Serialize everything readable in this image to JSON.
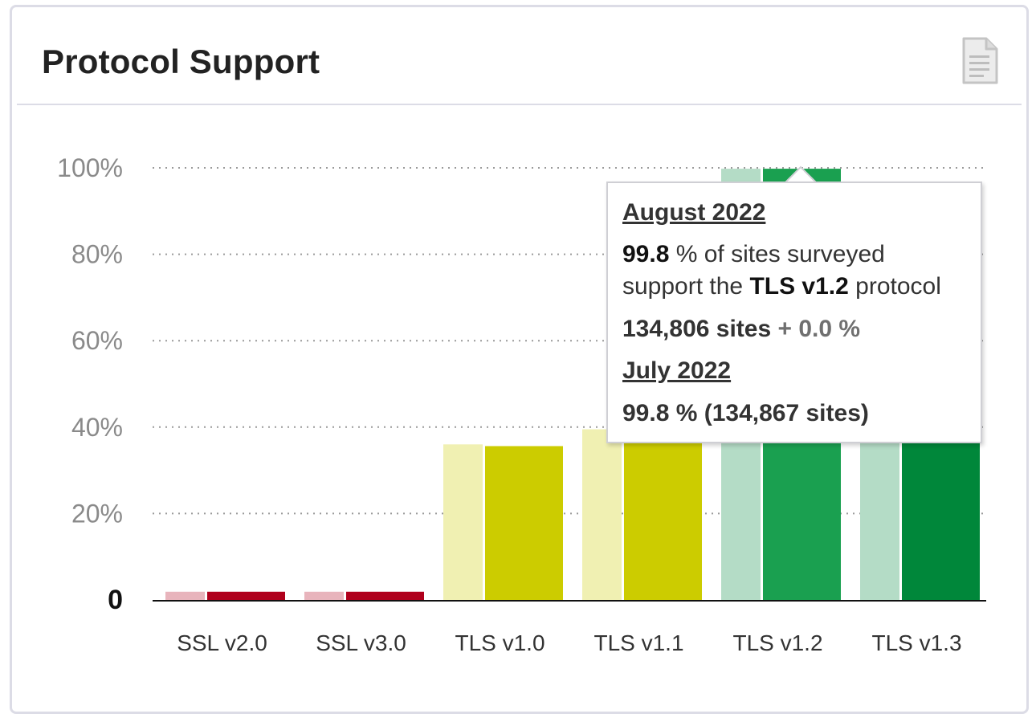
{
  "card": {
    "title": "Protocol Support",
    "report_icon": "document-icon"
  },
  "chart_data": {
    "type": "bar",
    "categories": [
      "SSL v2.0",
      "SSL v3.0",
      "TLS v1.0",
      "TLS v1.1",
      "TLS v1.2",
      "TLS v1.3"
    ],
    "series": [
      {
        "name": "July 2022",
        "values": [
          1.9,
          1.9,
          36.0,
          39.5,
          99.8,
          39.0
        ]
      },
      {
        "name": "August 2022",
        "values": [
          1.9,
          1.9,
          35.6,
          39.0,
          99.8,
          39.2
        ]
      }
    ],
    "colors": {
      "previous": [
        "#e8b4bc",
        "#e8b4bc",
        "#f0f0b2",
        "#f0f0b2",
        "#b4dcc6",
        "#b4dcc6"
      ],
      "current": [
        "#b0001c",
        "#b0001c",
        "#cccc00",
        "#cccc00",
        "#1aa050",
        "#00873a"
      ]
    },
    "yticks": [
      0,
      20,
      40,
      60,
      80,
      100
    ],
    "ytick_labels": [
      "0",
      "20%",
      "40%",
      "60%",
      "80%",
      "100%"
    ],
    "ylim": [
      0,
      100
    ],
    "grid": "dotted horizontal",
    "xlabel": "",
    "ylabel": ""
  },
  "tooltip": {
    "month": "August 2022",
    "percent": "99.8",
    "text1": " % of sites surveyed",
    "text2a": "support the ",
    "protocol": "TLS v1.2",
    "text2b": " protocol",
    "sites": "134,806 sites",
    "change": "+ 0.0 %",
    "prev_month": "July 2022",
    "prev_value": "99.8 % (134,867 sites)"
  }
}
